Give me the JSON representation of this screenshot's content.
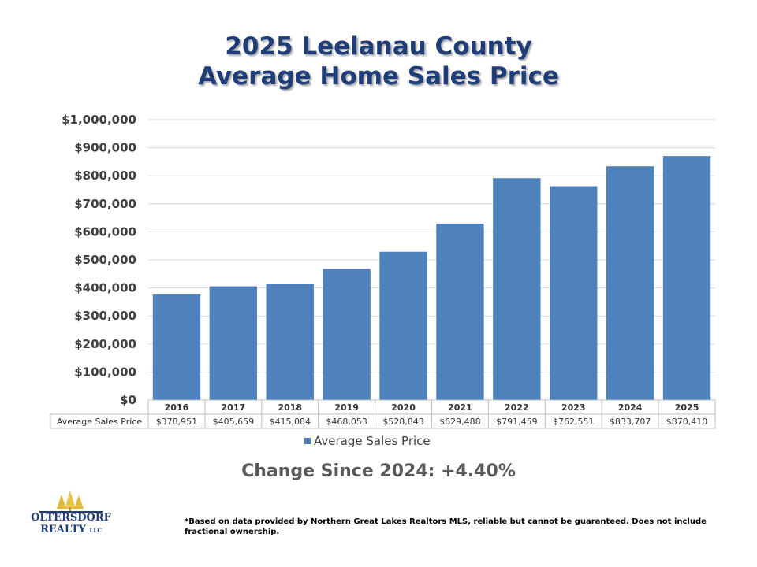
{
  "title": {
    "line1": "2025 Leelanau County",
    "line2": "Average Home Sales Price"
  },
  "chart_data": {
    "type": "bar",
    "categories": [
      "2016",
      "2017",
      "2018",
      "2019",
      "2020",
      "2021",
      "2022",
      "2023",
      "2024",
      "2025"
    ],
    "series": [
      {
        "name": "Average Sales Price",
        "values": [
          378951,
          405659,
          415084,
          468053,
          528843,
          629488,
          791459,
          762551,
          833707,
          870410
        ],
        "display_values": [
          "$378,951",
          "$405,659",
          "$415,084",
          "$468,053",
          "$528,843",
          "$629,488",
          "$791,459",
          "$762,551",
          "$833,707",
          "$870,410"
        ]
      }
    ],
    "y_tick_labels": [
      "$0",
      "$100,000",
      "$200,000",
      "$300,000",
      "$400,000",
      "$500,000",
      "$600,000",
      "$700,000",
      "$800,000",
      "$900,000",
      "$1,000,000"
    ],
    "ylim": [
      0,
      1000000
    ],
    "grid": true,
    "legend_position": "bottom",
    "data_table": true,
    "bar_color": "#4f81bd"
  },
  "change_text": "Change Since 2024: +4.40%",
  "logo": {
    "line1": "OLTERSDORF",
    "line2": "REALTY",
    "suffix": "LLC"
  },
  "footnote": "*Based on data provided by Northern Great Lakes Realtors MLS, reliable but cannot be guaranteed. Does not include fractional ownership."
}
